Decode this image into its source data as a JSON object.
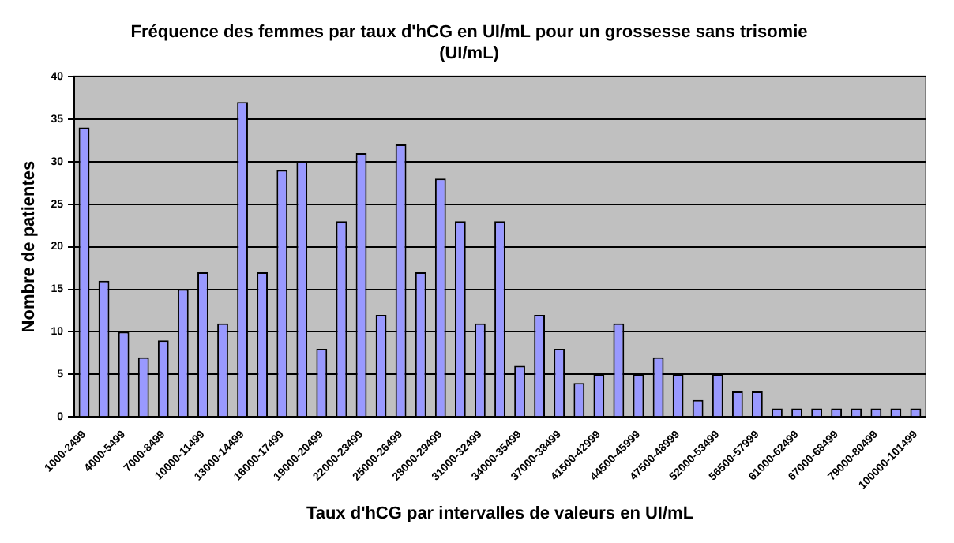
{
  "chart_data": {
    "type": "bar",
    "title": "Fréquence des femmes par taux d'hCG en UI/mL pour un grossesse sans trisomie (UI/mL)",
    "xlabel": "Taux d'hCG par intervalles de valeurs en UI/mL",
    "ylabel": "Nombre de patientes",
    "categories": [
      "1000-2499",
      null,
      "4000-5499",
      null,
      "7000-8499",
      null,
      "10000-11499",
      null,
      "13000-14499",
      null,
      "16000-17499",
      null,
      "19000-20499",
      null,
      "22000-23499",
      null,
      "25000-26499",
      null,
      "28000-29499",
      null,
      "31000-32499",
      null,
      "34000-35499",
      null,
      "37000-38499",
      null,
      "41500-42999",
      null,
      "44500-45999",
      null,
      "47500-48999",
      null,
      "52000-53499",
      null,
      "56500-57999",
      null,
      "61000-62499",
      null,
      "67000-68499",
      null,
      "79000-80499",
      null,
      "100000-101499"
    ],
    "values": [
      34,
      16,
      10,
      7,
      9,
      15,
      17,
      11,
      37,
      17,
      29,
      30,
      8,
      23,
      31,
      12,
      32,
      17,
      28,
      23,
      11,
      23,
      6,
      12,
      8,
      4,
      5,
      11,
      5,
      7,
      5,
      2,
      5,
      3,
      3,
      1,
      1,
      1,
      1,
      1,
      1,
      1,
      1
    ],
    "color": "#9999ff",
    "ylim": [
      0,
      40
    ],
    "yticks": [
      0,
      5,
      10,
      15,
      20,
      25,
      30,
      35,
      40
    ],
    "grid": "y",
    "legend": false
  }
}
